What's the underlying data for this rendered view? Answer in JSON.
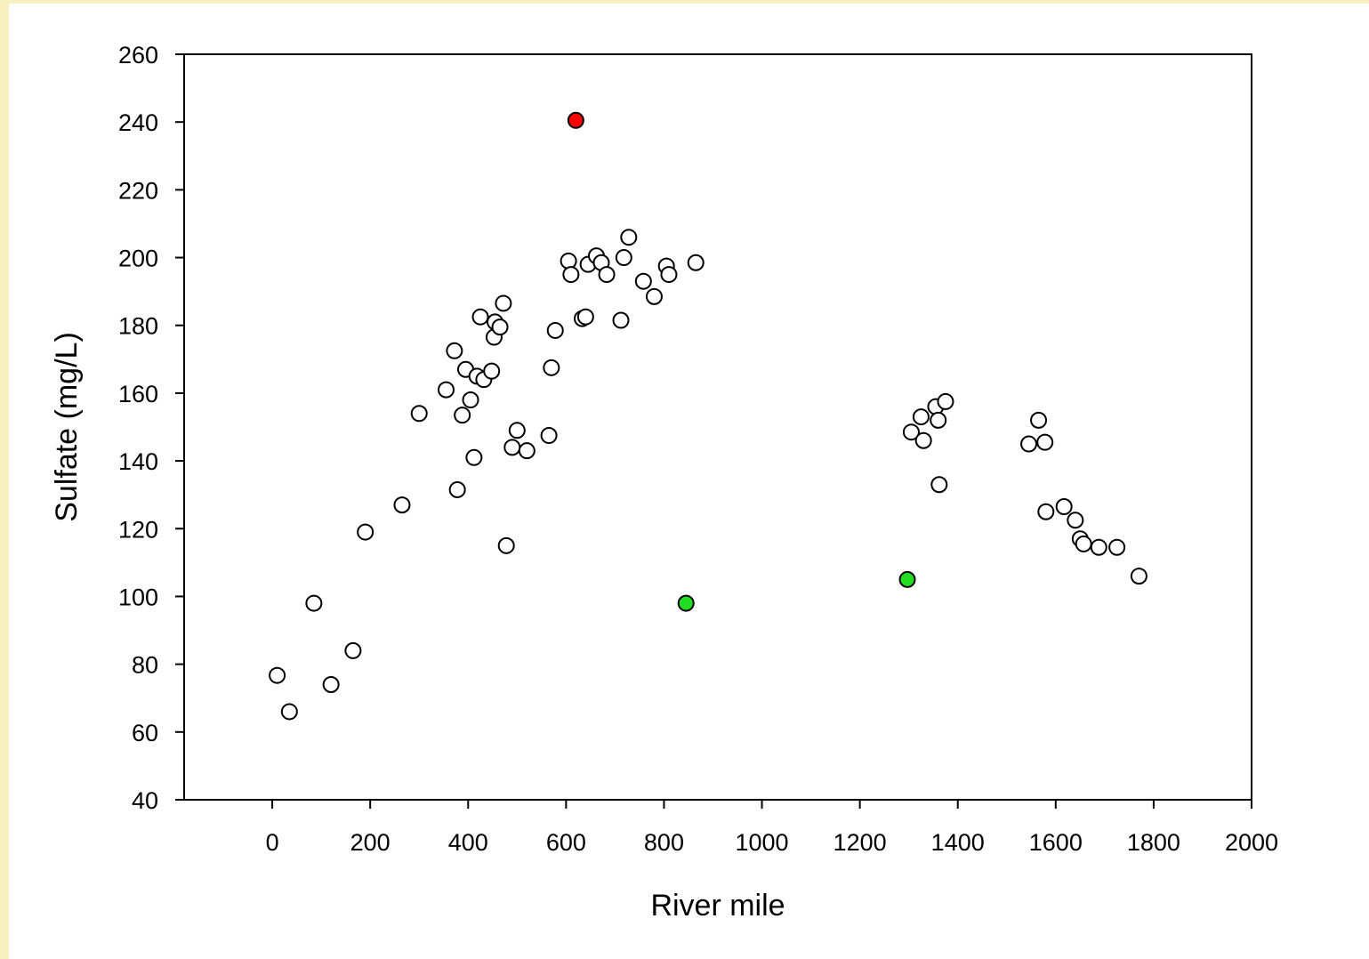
{
  "chart_data": {
    "type": "scatter",
    "title": "",
    "xlabel": "River mile",
    "ylabel": "Sulfate (mg/L)",
    "xlim": [
      -180,
      2000
    ],
    "ylim": [
      40,
      260
    ],
    "xticks": [
      0,
      200,
      400,
      600,
      800,
      1000,
      1200,
      1400,
      1600,
      1800,
      2000
    ],
    "yticks": [
      40,
      60,
      80,
      100,
      120,
      140,
      160,
      180,
      200,
      220,
      240,
      260
    ],
    "grid": false,
    "legend": "none",
    "colors": {
      "default": "#ffffff",
      "highlight_red": "#ff0000",
      "highlight_green": "#22dd22",
      "stroke": "#000000"
    },
    "points": [
      {
        "x": 10,
        "y": 76.7
      },
      {
        "x": 35,
        "y": 66
      },
      {
        "x": 85,
        "y": 98
      },
      {
        "x": 120,
        "y": 74
      },
      {
        "x": 165,
        "y": 84
      },
      {
        "x": 190,
        "y": 119
      },
      {
        "x": 265,
        "y": 127
      },
      {
        "x": 300,
        "y": 154
      },
      {
        "x": 355,
        "y": 161
      },
      {
        "x": 372,
        "y": 172.5
      },
      {
        "x": 378,
        "y": 131.5
      },
      {
        "x": 388,
        "y": 153.5
      },
      {
        "x": 395,
        "y": 167
      },
      {
        "x": 405,
        "y": 158
      },
      {
        "x": 412,
        "y": 141
      },
      {
        "x": 418,
        "y": 165
      },
      {
        "x": 425,
        "y": 182.5
      },
      {
        "x": 432,
        "y": 164
      },
      {
        "x": 448,
        "y": 166.5
      },
      {
        "x": 453,
        "y": 176.5
      },
      {
        "x": 455,
        "y": 181
      },
      {
        "x": 465,
        "y": 179.5
      },
      {
        "x": 472,
        "y": 186.5
      },
      {
        "x": 478,
        "y": 115
      },
      {
        "x": 490,
        "y": 144
      },
      {
        "x": 500,
        "y": 149
      },
      {
        "x": 520,
        "y": 143
      },
      {
        "x": 565,
        "y": 147.5
      },
      {
        "x": 570,
        "y": 167.5
      },
      {
        "x": 578,
        "y": 178.5
      },
      {
        "x": 605,
        "y": 199
      },
      {
        "x": 610,
        "y": 195
      },
      {
        "x": 620,
        "y": 240.5,
        "color": "red"
      },
      {
        "x": 633,
        "y": 182
      },
      {
        "x": 640,
        "y": 182.5
      },
      {
        "x": 645,
        "y": 198
      },
      {
        "x": 662,
        "y": 200.5
      },
      {
        "x": 672,
        "y": 198.5
      },
      {
        "x": 683,
        "y": 195
      },
      {
        "x": 712,
        "y": 181.5
      },
      {
        "x": 718,
        "y": 200
      },
      {
        "x": 728,
        "y": 206
      },
      {
        "x": 758,
        "y": 193
      },
      {
        "x": 780,
        "y": 188.5
      },
      {
        "x": 805,
        "y": 197.5
      },
      {
        "x": 810,
        "y": 195
      },
      {
        "x": 845,
        "y": 98,
        "color": "green"
      },
      {
        "x": 865,
        "y": 198.5
      },
      {
        "x": 1297,
        "y": 105,
        "color": "green"
      },
      {
        "x": 1305,
        "y": 148.5
      },
      {
        "x": 1325,
        "y": 153
      },
      {
        "x": 1330,
        "y": 146
      },
      {
        "x": 1355,
        "y": 156
      },
      {
        "x": 1360,
        "y": 152
      },
      {
        "x": 1362,
        "y": 133
      },
      {
        "x": 1375,
        "y": 157.5
      },
      {
        "x": 1545,
        "y": 145
      },
      {
        "x": 1565,
        "y": 152
      },
      {
        "x": 1578,
        "y": 145.5
      },
      {
        "x": 1580,
        "y": 125
      },
      {
        "x": 1617,
        "y": 126.5
      },
      {
        "x": 1640,
        "y": 122.5
      },
      {
        "x": 1650,
        "y": 117
      },
      {
        "x": 1657,
        "y": 115.5
      },
      {
        "x": 1688,
        "y": 114.5
      },
      {
        "x": 1725,
        "y": 114.5
      },
      {
        "x": 1770,
        "y": 106
      }
    ]
  }
}
